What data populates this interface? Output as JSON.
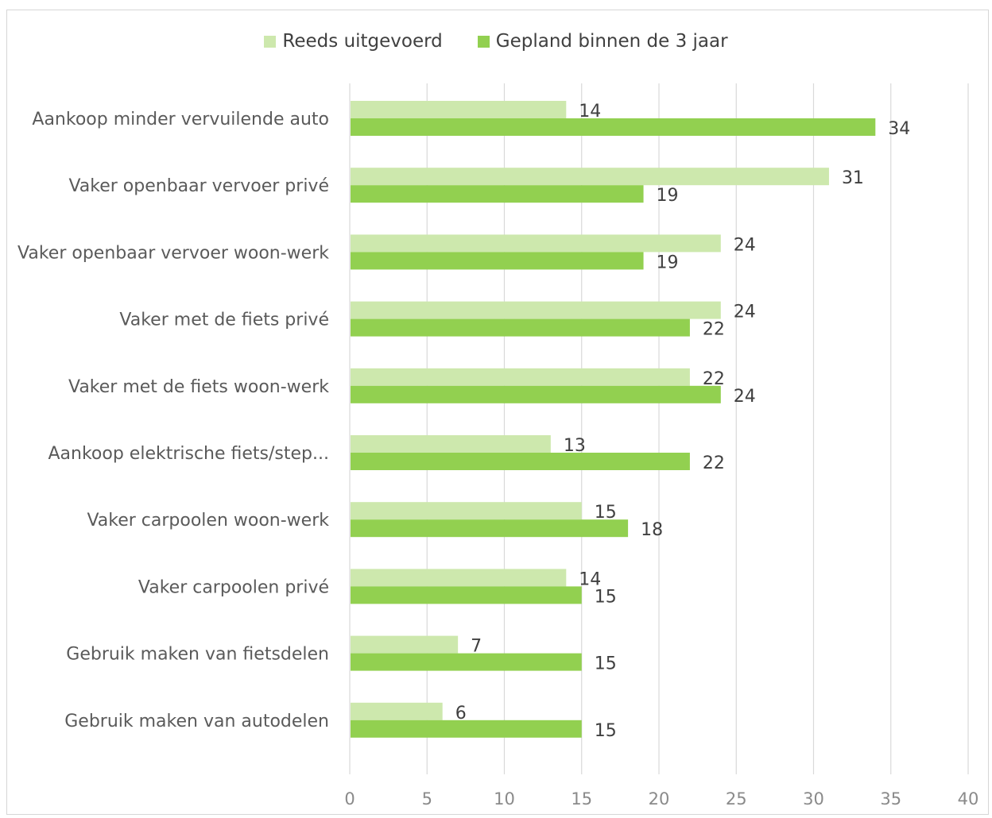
{
  "chart_data": {
    "type": "bar",
    "orientation": "horizontal",
    "categories": [
      "Aankoop minder vervuilende auto",
      "Vaker openbaar vervoer privé",
      "Vaker openbaar vervoer woon-werk",
      "Vaker met de fiets privé",
      "Vaker met de fiets woon-werk",
      "Aankoop elektrische fiets/step...",
      "Vaker carpoolen woon-werk",
      "Vaker carpoolen privé",
      "Gebruik maken van fietsdelen",
      "Gebruik maken van autodelen"
    ],
    "series": [
      {
        "name": "Reeds uitgevoerd",
        "color": "#cde8ad",
        "values": [
          14,
          31,
          24,
          24,
          22,
          13,
          15,
          14,
          7,
          6
        ]
      },
      {
        "name": "Gepland binnen de 3 jaar",
        "color": "#92d050",
        "values": [
          34,
          19,
          19,
          22,
          24,
          22,
          18,
          15,
          15,
          15
        ]
      }
    ],
    "xlim": [
      0,
      40
    ],
    "xticks": [
      "0",
      "5",
      "10",
      "15",
      "20",
      "25",
      "30",
      "35",
      "40"
    ],
    "grid": true,
    "legend": "top-center",
    "title": "",
    "xlabel": "",
    "ylabel": ""
  }
}
